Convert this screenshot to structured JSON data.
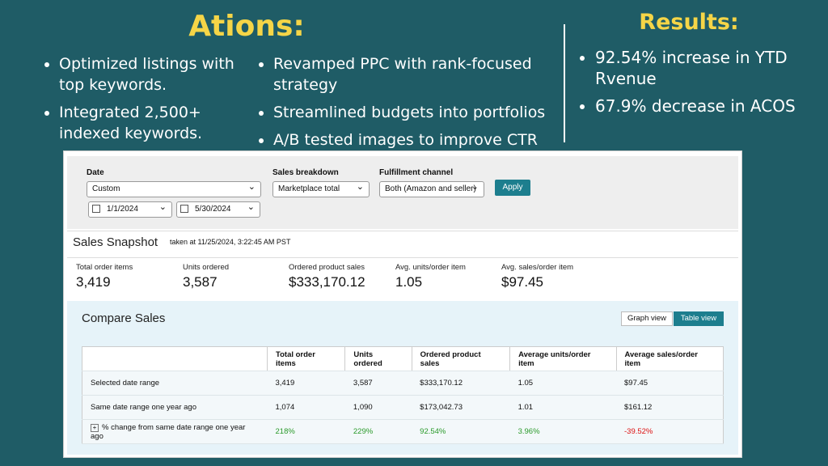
{
  "actions": {
    "title": "Ations:",
    "column_1": [
      "Optimized listings with top keywords.",
      "Integrated 2,500+ indexed keywords."
    ],
    "column_2": [
      "Revamped PPC with rank-focused strategy",
      "Streamlined budgets into portfolios",
      "A/B tested images to improve CTR"
    ]
  },
  "results": {
    "title": "Results:",
    "bullets": [
      "92.54% increase in YTD Rvenue",
      "67.9% decrease in ACOS"
    ]
  },
  "filters": {
    "date_label": "Date",
    "date_value": "Custom",
    "start_date": "1/1/2024",
    "end_date": "5/30/2024",
    "sales_breakdown_label": "Sales breakdown",
    "sales_breakdown_value": "Marketplace total",
    "fulfillment_label": "Fulfillment channel",
    "fulfillment_value": "Both (Amazon and seller)",
    "apply": "Apply"
  },
  "snapshot": {
    "title": "Sales Snapshot",
    "taken": "taken at 11/25/2024, 3:22:45 AM PST",
    "metrics": [
      {
        "label": "Total order items",
        "value": "3,419"
      },
      {
        "label": "Units ordered",
        "value": "3,587"
      },
      {
        "label": "Ordered product sales",
        "value": "$333,170.12"
      },
      {
        "label": "Avg. units/order item",
        "value": "1.05"
      },
      {
        "label": "Avg. sales/order item",
        "value": "$97.45"
      }
    ]
  },
  "compare": {
    "title": "Compare Sales",
    "views": [
      "Graph view",
      "Table view"
    ],
    "table": {
      "headers": [
        "Total order items",
        "Units ordered",
        "Ordered product sales",
        "Average units/order item",
        "Average sales/order item"
      ],
      "rows": [
        [
          "Selected date range",
          "3,419",
          "3,587",
          "$333,170.12",
          "1.05",
          "$97.45"
        ],
        [
          "Same date range one year ago",
          "1,074",
          "1,090",
          "$173,042.73",
          "1.01",
          "$161.12"
        ],
        [
          "% change from same date range one year ago",
          "218%",
          "229%",
          "92.54%",
          "3.96%",
          "-39.52%"
        ]
      ]
    }
  }
}
